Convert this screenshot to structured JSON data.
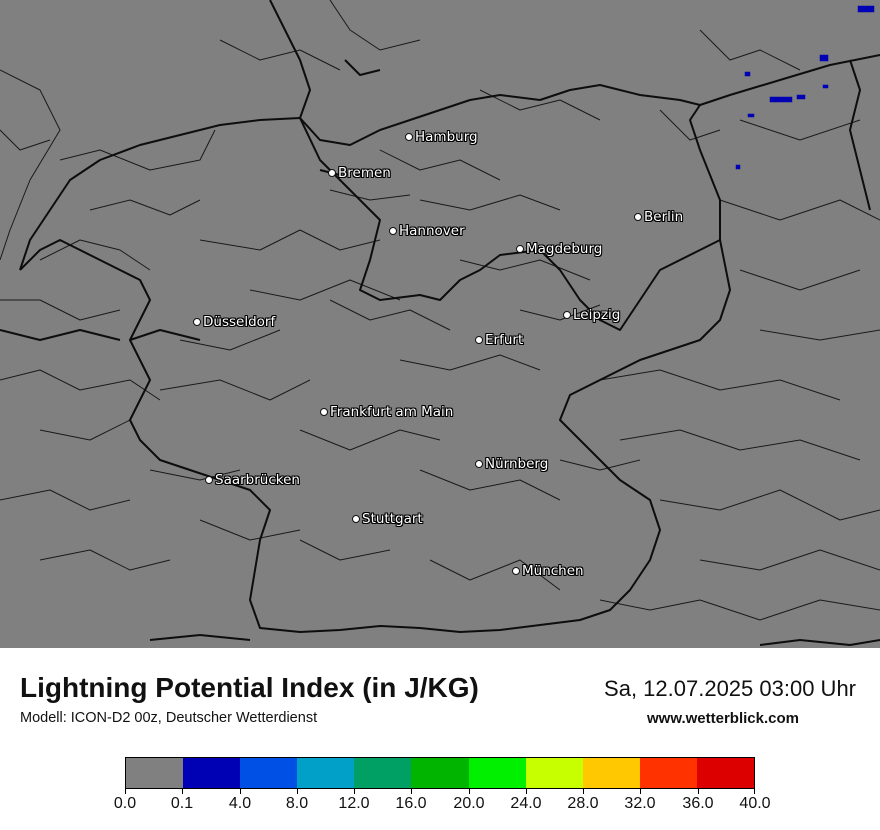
{
  "map": {
    "cities": [
      {
        "name": "Hamburg"
      },
      {
        "name": "Bremen"
      },
      {
        "name": "Berlin"
      },
      {
        "name": "Hannover"
      },
      {
        "name": "Magdeburg"
      },
      {
        "name": "Leipzig"
      },
      {
        "name": "Düsseldorf"
      },
      {
        "name": "Erfurt"
      },
      {
        "name": "Frankfurt am Main"
      },
      {
        "name": "Nürnberg"
      },
      {
        "name": "Saarbrücken"
      },
      {
        "name": "Stuttgart"
      },
      {
        "name": "München"
      }
    ],
    "background_color": "#808080"
  },
  "header": {
    "title": "Lightning Potential Index (in J/KG)",
    "subtitle": "Modell: ICON-D2 00z, Deutscher Wetterdienst",
    "datetime": "Sa, 12.07.2025 03:00 Uhr",
    "website": "www.wetterblick.com"
  },
  "legend": {
    "colors": [
      "#808080",
      "#0000b4",
      "#0050e6",
      "#00a0c8",
      "#00a064",
      "#00b400",
      "#00f000",
      "#c8ff00",
      "#ffc800",
      "#ff3200",
      "#dc0000"
    ],
    "tick_labels": [
      "0.0",
      "0.1",
      "4.0",
      "8.0",
      "12.0",
      "16.0",
      "20.0",
      "24.0",
      "28.0",
      "32.0",
      "36.0",
      "40.0"
    ]
  }
}
